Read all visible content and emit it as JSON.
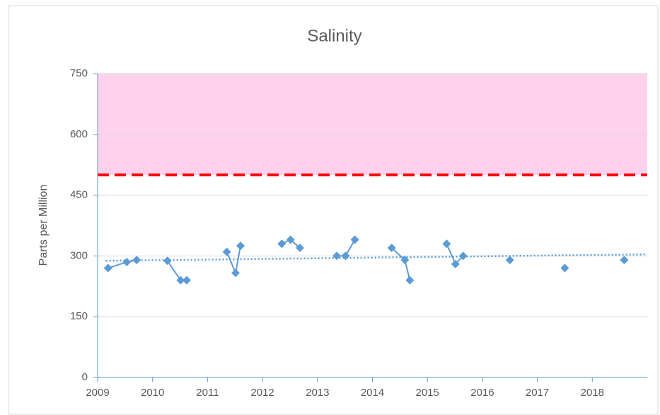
{
  "chart_data": {
    "type": "line",
    "title": "Salinity",
    "y_label": "Parts per Million",
    "x": [
      2009.19,
      2009.53,
      2009.71,
      null,
      2010.27,
      2010.51,
      2010.62,
      null,
      2011.35,
      2011.51,
      2011.6,
      null,
      2012.35,
      2012.51,
      2012.68,
      null,
      2013.35,
      2013.51,
      2013.68,
      null,
      2014.35,
      2014.59,
      2014.68,
      null,
      2015.35,
      2015.51,
      2015.65,
      null,
      2016.5,
      null,
      2017.5,
      null,
      2018.58
    ],
    "values": [
      270,
      285,
      290,
      null,
      288,
      240,
      240,
      null,
      310,
      258,
      325,
      null,
      330,
      340,
      320,
      null,
      300,
      300,
      340,
      null,
      320,
      290,
      240,
      null,
      330,
      280,
      300,
      null,
      290,
      null,
      270,
      null,
      290
    ],
    "color": "#5b9bd5",
    "trendline": {
      "x": [
        2009.15,
        2019
      ],
      "values": [
        288,
        304
      ],
      "color": "#5b9bd5"
    },
    "threshold": {
      "value": 500,
      "color": "#ff0000"
    },
    "band": {
      "range": [
        500,
        750
      ],
      "color": "#ffd1ec"
    },
    "xlim": [
      2009,
      2019
    ],
    "xticks": [
      2009,
      2010,
      2011,
      2012,
      2013,
      2014,
      2015,
      2016,
      2017,
      2018
    ],
    "ylim": [
      0,
      750
    ],
    "yticks": [
      0,
      150,
      300,
      450,
      600,
      750
    ],
    "grid": true
  }
}
